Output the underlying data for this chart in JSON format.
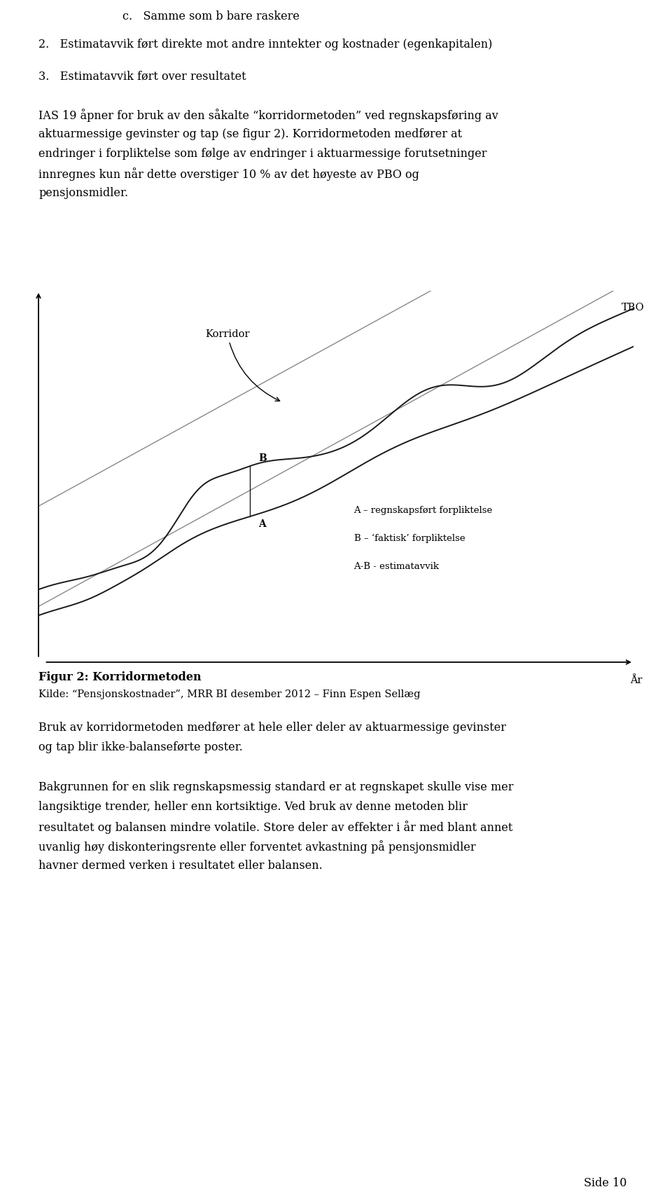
{
  "background_color": "#ffffff",
  "page_width": 9.6,
  "page_height": 17.04,
  "text_color": "#000000",
  "font_family": "DejaVu Serif",
  "line1_text": "c.   Samme som b bare raskere",
  "line2_text": "2.   Estimatavvik ført direkte mot andre inntekter og kostnader (egenkapitalen)",
  "line3_text": "3.   Estimatavvik ført over resultatet",
  "para1_lines": [
    "IAS 19 åpner for bruk av den såkalte “korridormetoden” ved regnskapsføring av",
    "aktuarmessige gevinster og tap (se figur 2). Korridormetoden medfører at",
    "endringer i forpliktelse som følge av endringer i aktuarmessige forutsetninger",
    "innregnes kun når dette overstiger 10 % av det høyeste av PBO og",
    "pensjonsmidler."
  ],
  "fig_caption_bold": "Figur 2: Korridormetoden",
  "fig_caption_kilde": "Kilde: “Pensjonskostnader”, MRR BI desember 2012 – Finn Espen Sellæg",
  "para2_lines": [
    "Bruk av korridormetoden medfører at hele eller deler av aktuarmessige gevinster",
    "og tap blir ikke-balanseførte poster."
  ],
  "para3_lines": [
    "Bakgrunnen for en slik regnskapsmessig standard er at regnskapet skulle vise mer",
    "langsiktige trender, heller enn kortsiktige. Ved bruk av denne metoden blir",
    "resultatet og balansen mindre volatile. Store deler av effekter i år med blant annet",
    "uvanlig høy diskonteringsrente eller forventet avkastning på pensjonsmidler",
    "havner dermed verken i resultatet eller balansen."
  ],
  "page_number": "Side 10",
  "chart_label_korridor": "Korridor",
  "chart_label_TBO": "TBO",
  "chart_label_B": "B",
  "chart_label_A": "A",
  "chart_legend_A": "A – regnskapsført forpliktelse",
  "chart_legend_B": "B – ‘faktisk’ forpliktelse",
  "chart_legend_AB": "A-B - estimatavvik",
  "chart_xlabel": "År"
}
